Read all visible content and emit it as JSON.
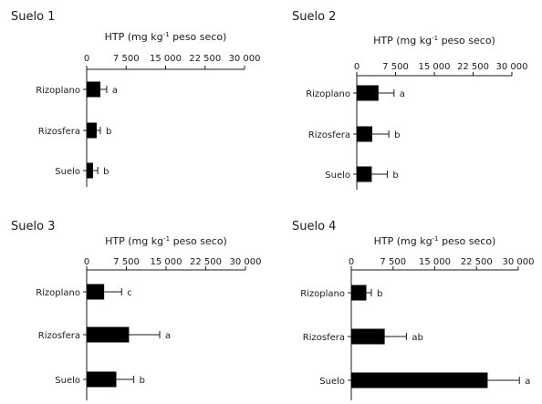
{
  "chart_data": [
    {
      "type": "bar",
      "orientation": "horizontal",
      "title": "Suelo 1",
      "xlabel": "HTP (mg kg",
      "xlabel_sup": "-1",
      "xlabel_suffix": " peso seco)",
      "xlim": [
        0,
        30000
      ],
      "xticks": [
        0,
        7500,
        15000,
        22500,
        30000
      ],
      "xtick_labels": [
        "0",
        "7 500",
        "15 000",
        "22 500",
        "30 000"
      ],
      "categories": [
        "Rizoplano",
        "Rizosfera",
        "Suelo"
      ],
      "values": [
        2600,
        1900,
        1200
      ],
      "errors": [
        1200,
        700,
        900
      ],
      "significance": [
        "a",
        "b",
        "b"
      ],
      "color": "#000000"
    },
    {
      "type": "bar",
      "orientation": "horizontal",
      "title": "Suelo 2",
      "xlabel": "HTP (mg kg",
      "xlabel_sup": "-1",
      "xlabel_suffix": " peso seco)",
      "xlim": [
        0,
        30000
      ],
      "xticks": [
        0,
        7500,
        15000,
        22500,
        30000
      ],
      "xtick_labels": [
        "0",
        "7 500",
        "15 000",
        "22 500",
        "30 000"
      ],
      "categories": [
        "Rizoplano",
        "Rizosfera",
        "Suelo"
      ],
      "values": [
        4200,
        3000,
        2900
      ],
      "errors": [
        3000,
        3200,
        3000
      ],
      "significance": [
        "a",
        "b",
        "b"
      ],
      "color": "#000000"
    },
    {
      "type": "bar",
      "orientation": "horizontal",
      "title": "Suelo 3",
      "xlabel": "HTP (mg kg",
      "xlabel_sup": "-1",
      "xlabel_suffix": " peso seco)",
      "xlim": [
        0,
        30000
      ],
      "xticks": [
        0,
        7500,
        15000,
        22500,
        30000
      ],
      "xtick_labels": [
        "0",
        "7 500",
        "15 000",
        "22 500",
        "30 000"
      ],
      "categories": [
        "Rizoplano",
        "Rizosfera",
        "Suelo"
      ],
      "values": [
        3300,
        8000,
        5600
      ],
      "errors": [
        3300,
        5800,
        3300
      ],
      "significance": [
        "c",
        "a",
        "b"
      ],
      "color": "#000000"
    },
    {
      "type": "bar",
      "orientation": "horizontal",
      "title": "Suelo 4",
      "xlabel": "HTP (mg kg",
      "xlabel_sup": "-1",
      "xlabel_suffix": " peso seco)",
      "xlim": [
        0,
        30000
      ],
      "xticks": [
        0,
        7500,
        15000,
        22500,
        30000
      ],
      "xtick_labels": [
        "0",
        "7 500",
        "15 000",
        "22 500",
        "30 000"
      ],
      "categories": [
        "Rizoplano",
        "Rizosfera",
        "Suelo"
      ],
      "values": [
        2700,
        6000,
        24500
      ],
      "errors": [
        900,
        3900,
        5700
      ],
      "significance": [
        "b",
        "ab",
        "a"
      ],
      "color": "#000000"
    }
  ]
}
